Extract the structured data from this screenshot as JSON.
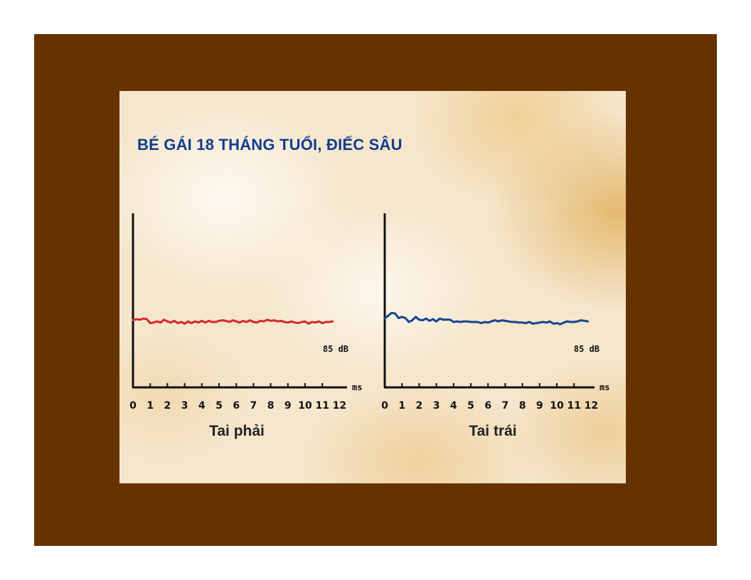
{
  "slide": {
    "title": "BÉ GÁI 18 THÁNG TUỔI, ĐIẾC SÂU"
  },
  "colors": {
    "frame": "#663300",
    "title": "#123c8c",
    "right_ear_trace": "#d9262b",
    "left_ear_trace": "#15438f",
    "axis": "#111111"
  },
  "chart_data": [
    {
      "type": "line",
      "caption": "Tai phải",
      "x_unit_label": "ms",
      "level_label": "85 dB",
      "x_ticks": [
        "0",
        "1",
        "2",
        "3",
        "4",
        "5",
        "6",
        "7",
        "8",
        "9",
        "10",
        "11",
        "12"
      ],
      "xlim": [
        0,
        12
      ],
      "ylim": [
        -5,
        5
      ],
      "grid": false,
      "series": [
        {
          "color": "#d9262b",
          "x": [
            0,
            0.2,
            0.4,
            0.6,
            0.8,
            1,
            1.2,
            1.4,
            1.6,
            1.8,
            2,
            2.2,
            2.4,
            2.6,
            2.8,
            3,
            3.2,
            3.4,
            3.6,
            3.8,
            4,
            4.2,
            4.4,
            4.6,
            4.8,
            5,
            5.2,
            5.4,
            5.6,
            5.8,
            6,
            6.2,
            6.4,
            6.6,
            6.8,
            7,
            7.2,
            7.4,
            7.6,
            7.8,
            8,
            8.2,
            8.4,
            8.6,
            8.8,
            9,
            9.2,
            9.4,
            9.6,
            9.8,
            10,
            10.2,
            10.4,
            10.6,
            10.8,
            11,
            11.2,
            11.4,
            11.6
          ],
          "values": [
            0.3,
            0.5,
            0.4,
            0.6,
            0.5,
            -0.2,
            -0.1,
            0.1,
            -0.1,
            0.4,
            0.1,
            -0.1,
            0.2,
            -0.2,
            0.0,
            -0.3,
            0.1,
            -0.2,
            0.1,
            -0.1,
            0.2,
            -0.1,
            0.2,
            0.0,
            0.0,
            0.2,
            0.3,
            0.2,
            0.0,
            0.3,
            0.1,
            -0.1,
            0.2,
            0.0,
            0.3,
            0.0,
            -0.1,
            0.2,
            0.1,
            0.4,
            0.2,
            0.3,
            0.1,
            0.2,
            0.0,
            -0.1,
            0.1,
            -0.1,
            -0.2,
            0.0,
            0.1,
            -0.3,
            0.0,
            -0.1,
            0.1,
            -0.2,
            0.0,
            0.0,
            0.1
          ]
        }
      ]
    },
    {
      "type": "line",
      "caption": "Tai trái",
      "x_unit_label": "ms",
      "level_label": "85 dB",
      "x_ticks": [
        "0",
        "1",
        "2",
        "3",
        "4",
        "5",
        "6",
        "7",
        "8",
        "9",
        "10",
        "11",
        "12"
      ],
      "xlim": [
        0,
        12
      ],
      "ylim": [
        -5,
        5
      ],
      "grid": false,
      "series": [
        {
          "color": "#15438f",
          "x": [
            0,
            0.2,
            0.4,
            0.6,
            0.8,
            1,
            1.2,
            1.4,
            1.6,
            1.8,
            2,
            2.2,
            2.4,
            2.6,
            2.8,
            3,
            3.2,
            3.4,
            3.6,
            3.8,
            4,
            4.2,
            4.4,
            4.6,
            4.8,
            5,
            5.2,
            5.4,
            5.6,
            5.8,
            6,
            6.2,
            6.4,
            6.6,
            6.8,
            7,
            7.2,
            7.4,
            7.6,
            7.8,
            8,
            8.2,
            8.4,
            8.6,
            8.8,
            9,
            9.2,
            9.4,
            9.6,
            9.8,
            10,
            10.2,
            10.4,
            10.6,
            10.8,
            11,
            11.2,
            11.4,
            11.6,
            11.8
          ],
          "values": [
            0.6,
            1.1,
            1.6,
            1.5,
            0.7,
            0.9,
            0.7,
            0.0,
            0.3,
            0.9,
            0.4,
            0.3,
            0.6,
            0.2,
            0.5,
            0.1,
            0.6,
            0.4,
            0.4,
            0.4,
            0.0,
            0.1,
            0.0,
            0.1,
            0.1,
            0.0,
            0.0,
            0.0,
            -0.2,
            0.0,
            -0.1,
            0.1,
            0.3,
            0.1,
            0.3,
            0.2,
            0.1,
            0.0,
            0.0,
            -0.1,
            -0.1,
            -0.2,
            0.0,
            -0.3,
            -0.2,
            -0.1,
            0.0,
            -0.1,
            0.1,
            -0.3,
            -0.2,
            -0.4,
            -0.1,
            0.1,
            0.0,
            0.0,
            0.1,
            0.3,
            0.2,
            0.1
          ]
        }
      ]
    }
  ]
}
